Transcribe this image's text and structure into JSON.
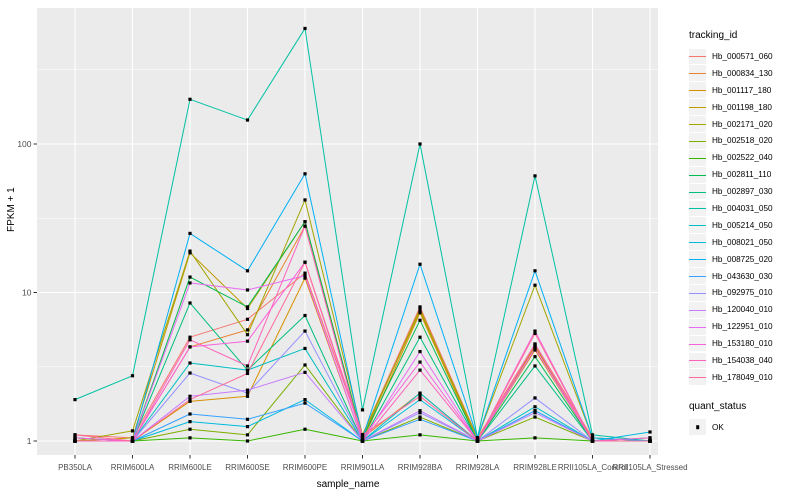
{
  "figure": {
    "x_axis_title": "sample_name",
    "y_axis_title": "FPKM + 1"
  },
  "legend": {
    "tracking_title": "tracking_id",
    "quant_title": "quant_status",
    "quant_ok_label": "OK"
  },
  "colors": {
    "panel_bg": "#EBEBEB",
    "grid_major": "#FFFFFF",
    "grid_minor": "#FFFFFF",
    "tick_mark": "#333333",
    "tick_label": "#4D4D4D",
    "point": "#000000",
    "legend_key_bg": "#F2F2F2"
  },
  "chart_data": {
    "type": "line",
    "title": "",
    "xlabel": "sample_name",
    "ylabel": "FPKM + 1",
    "y_scale": "log10",
    "ylim": [
      0.8,
      830
    ],
    "y_major_ticks": [
      1,
      10,
      100
    ],
    "y_minor_ticks": [
      3.162,
      31.62,
      316.2
    ],
    "grid": "white major+minor horizontal, white vertical per category, on grey panel",
    "legend_position": "right",
    "point_marker": {
      "shape": "square",
      "color": "#000000",
      "status_label": "OK"
    },
    "categories": [
      "PB350LA",
      "RRIM600LA",
      "RRIM600LE",
      "RRIM600SE",
      "RRIM600PE",
      "RRIM901LA",
      "RRIM928BA",
      "RRIM928LA",
      "RRIM928LE",
      "RRII105LA_Control",
      "RRII105LA_Stressed"
    ],
    "series": [
      {
        "name": "Hb_000571_060",
        "color": "#F8766D",
        "values": [
          1.1,
          1.05,
          5.0,
          6.6,
          13.5,
          1.1,
          8.0,
          1.05,
          4.5,
          1.05,
          1.0
        ]
      },
      {
        "name": "Hb_000834_130",
        "color": "#EA8331",
        "values": [
          1.05,
          1.0,
          4.3,
          5.6,
          28.0,
          1.05,
          2.1,
          1.0,
          4.3,
          1.0,
          1.0
        ]
      },
      {
        "name": "Hb_001117_180",
        "color": "#D89000",
        "values": [
          1.0,
          1.0,
          1.85,
          2.0,
          12.5,
          1.0,
          7.3,
          1.0,
          4.1,
          1.0,
          1.0
        ]
      },
      {
        "name": "Hb_001198_180",
        "color": "#C09B00",
        "values": [
          1.0,
          1.05,
          18.5,
          7.8,
          30.0,
          1.05,
          7.8,
          1.0,
          4.4,
          1.0,
          1.0
        ]
      },
      {
        "name": "Hb_002171_020",
        "color": "#A3A500",
        "values": [
          1.0,
          1.17,
          19.0,
          5.2,
          42.0,
          1.1,
          7.5,
          1.05,
          11.2,
          1.05,
          1.0
        ]
      },
      {
        "name": "Hb_002518_020",
        "color": "#7CAE00",
        "values": [
          1.0,
          1.0,
          1.2,
          1.1,
          3.25,
          1.0,
          1.45,
          1.0,
          1.45,
          1.0,
          1.0
        ]
      },
      {
        "name": "Hb_002522_040",
        "color": "#39B600",
        "values": [
          1.0,
          1.0,
          1.05,
          1.0,
          1.2,
          1.0,
          1.1,
          1.0,
          1.05,
          1.0,
          1.05
        ]
      },
      {
        "name": "Hb_002811_110",
        "color": "#00BB4E",
        "values": [
          1.0,
          1.0,
          12.7,
          8.0,
          30.0,
          1.05,
          6.5,
          1.0,
          3.7,
          1.0,
          1.0
        ]
      },
      {
        "name": "Hb_002897_030",
        "color": "#00BF7D",
        "values": [
          1.0,
          1.0,
          8.5,
          3.0,
          7.0,
          1.0,
          5.0,
          1.0,
          3.2,
          1.0,
          1.0
        ]
      },
      {
        "name": "Hb_004031_050",
        "color": "#00C1A3",
        "values": [
          1.9,
          2.75,
          200.0,
          145.0,
          600.0,
          1.62,
          100.0,
          1.05,
          61.0,
          1.1,
          1.0
        ]
      },
      {
        "name": "Hb_005214_050",
        "color": "#00BFC4",
        "values": [
          1.0,
          1.0,
          3.35,
          3.0,
          4.2,
          1.0,
          2.1,
          1.0,
          1.7,
          1.0,
          1.0
        ]
      },
      {
        "name": "Hb_008021_050",
        "color": "#00BAE0",
        "values": [
          1.0,
          1.0,
          1.35,
          1.25,
          1.9,
          1.0,
          1.9,
          1.0,
          1.6,
          1.0,
          1.15
        ]
      },
      {
        "name": "Hb_008725_020",
        "color": "#00B0F6",
        "values": [
          1.05,
          1.0,
          25.0,
          14.0,
          63.0,
          1.05,
          15.5,
          1.05,
          14.0,
          1.05,
          1.0
        ]
      },
      {
        "name": "Hb_043630_030",
        "color": "#35A2FF",
        "values": [
          1.0,
          1.0,
          1.52,
          1.4,
          1.8,
          1.0,
          1.4,
          1.0,
          1.6,
          1.0,
          1.0
        ]
      },
      {
        "name": "Hb_092975_010",
        "color": "#9590FF",
        "values": [
          1.0,
          1.0,
          2.87,
          2.1,
          5.5,
          1.0,
          1.55,
          1.0,
          1.95,
          1.0,
          1.0
        ]
      },
      {
        "name": "Hb_120040_010",
        "color": "#C77CFF",
        "values": [
          1.0,
          1.0,
          2.0,
          2.2,
          2.9,
          1.0,
          1.6,
          1.0,
          1.55,
          1.0,
          1.0
        ]
      },
      {
        "name": "Hb_122951_010",
        "color": "#E76BF3",
        "values": [
          1.0,
          1.0,
          11.6,
          10.4,
          13.0,
          1.0,
          4.0,
          1.0,
          4.2,
          1.0,
          1.0
        ]
      },
      {
        "name": "Hb_153180_010",
        "color": "#FA62DB",
        "values": [
          1.05,
          1.0,
          4.3,
          4.7,
          16.0,
          1.05,
          3.4,
          1.0,
          5.5,
          1.0,
          1.05
        ]
      },
      {
        "name": "Hb_154038_040",
        "color": "#FF62BC",
        "values": [
          1.0,
          1.0,
          4.8,
          3.2,
          28.0,
          1.0,
          3.0,
          1.0,
          4.5,
          1.0,
          1.0
        ]
      },
      {
        "name": "Hb_178049_010",
        "color": "#FF6A98",
        "values": [
          1.1,
          1.0,
          1.9,
          2.85,
          16.0,
          1.1,
          2.0,
          1.0,
          5.3,
          1.0,
          1.0
        ]
      }
    ]
  }
}
